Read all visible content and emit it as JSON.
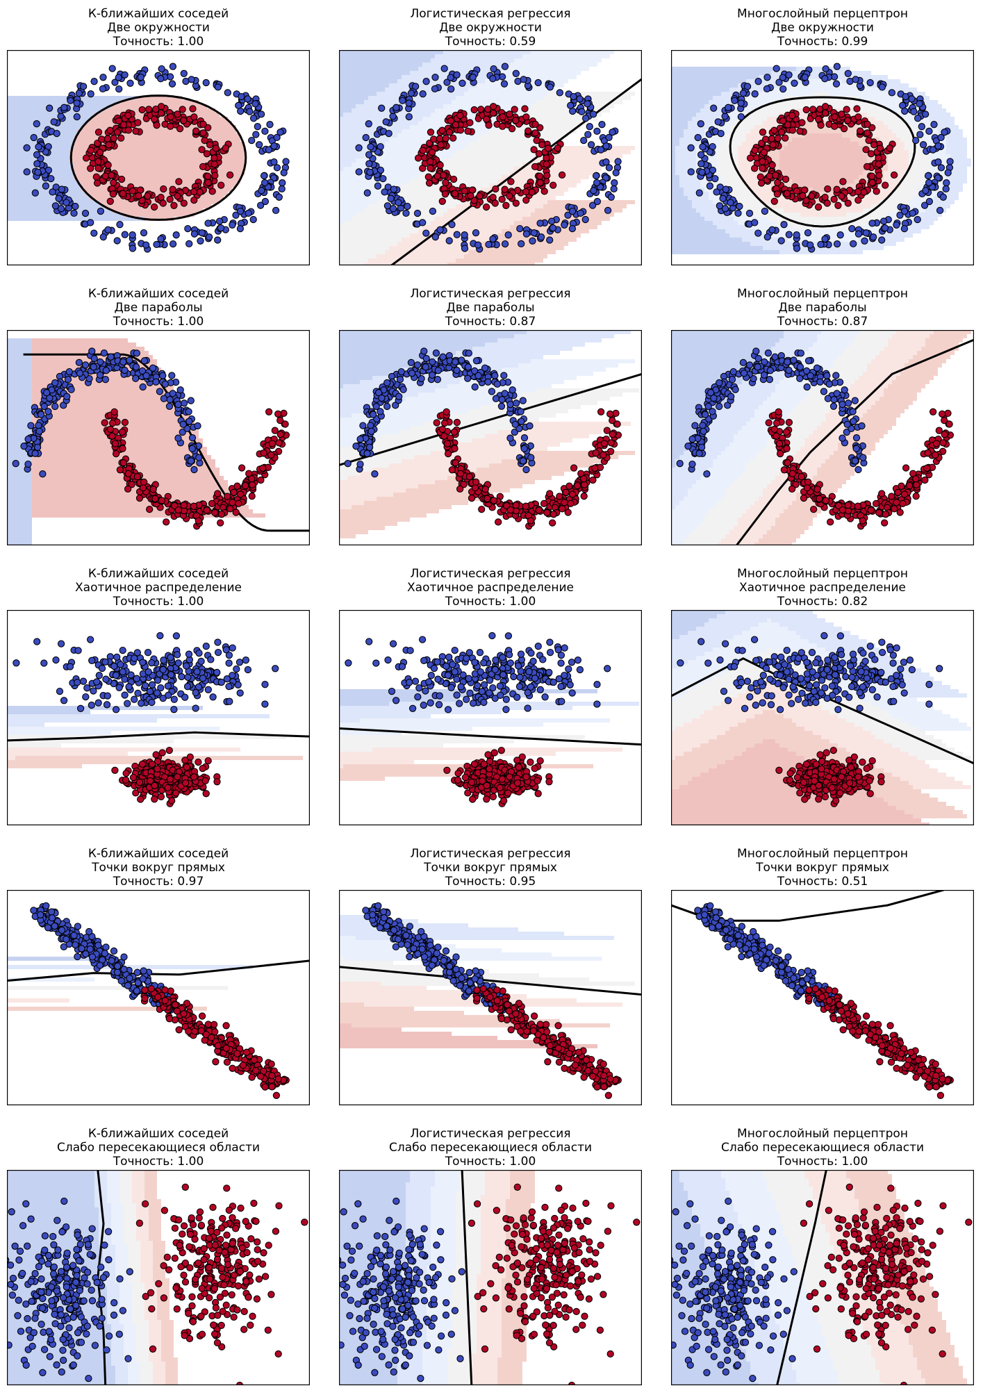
{
  "colors": {
    "blue_bg": "#c6d2f1",
    "blue_light": "#dde6fa",
    "blue_pale": "#eaf0fc",
    "neutral": "#f2f2f2",
    "red_pale": "#f9e6e3",
    "red_light": "#f4d2cc",
    "red_bg": "#efc2c0",
    "blue_point": "#3b4cc0",
    "red_point": "#b40426",
    "boundary": "#000000",
    "point_edge": "#000000"
  },
  "chart_data": [
    {
      "type": "scatter",
      "model": "К-ближайших соседей",
      "dataset": "Две окружности",
      "accuracy_label": "Точность: 1.00",
      "accuracy": 1.0,
      "xlim": [
        -1.3,
        1.3
      ],
      "ylim": [
        -1.3,
        1.3
      ],
      "xticks": [],
      "yticks": [],
      "series": [
        {
          "class": 0,
          "shape": "ring",
          "radius": 1.0,
          "noise": 0.06
        },
        {
          "class": 1,
          "shape": "ring",
          "radius": 0.5,
          "noise": 0.06
        }
      ]
    },
    {
      "type": "scatter",
      "model": "Логистическая регрессия",
      "dataset": "Две окружности",
      "accuracy_label": "Точность: 0.59",
      "accuracy": 0.59,
      "xlim": [
        -1.3,
        1.3
      ],
      "ylim": [
        -1.3,
        1.3
      ],
      "xticks": [],
      "yticks": [],
      "series": [
        {
          "class": 0,
          "shape": "ring",
          "radius": 1.0,
          "noise": 0.06
        },
        {
          "class": 1,
          "shape": "ring",
          "radius": 0.5,
          "noise": 0.06
        }
      ]
    },
    {
      "type": "scatter",
      "model": "Многослойный перцептрон",
      "dataset": "Две окружности",
      "accuracy_label": "Точность: 0.99",
      "accuracy": 0.99,
      "xlim": [
        -1.3,
        1.3
      ],
      "ylim": [
        -1.3,
        1.3
      ],
      "xticks": [],
      "yticks": [],
      "series": [
        {
          "class": 0,
          "shape": "ring",
          "radius": 1.0,
          "noise": 0.06
        },
        {
          "class": 1,
          "shape": "ring",
          "radius": 0.5,
          "noise": 0.06
        }
      ]
    },
    {
      "type": "scatter",
      "model": "К-ближайших соседей",
      "dataset": "Две параболы",
      "accuracy_label": "Точность: 1.00",
      "accuracy": 1.0,
      "xlim": [
        -1.3,
        2.4
      ],
      "ylim": [
        -0.85,
        1.35
      ],
      "xticks": [],
      "yticks": [],
      "series": [
        {
          "class": 0,
          "shape": "moon_upper",
          "noise": 0.06
        },
        {
          "class": 1,
          "shape": "moon_lower",
          "noise": 0.06
        }
      ]
    },
    {
      "type": "scatter",
      "model": "Логистическая регрессия",
      "dataset": "Две параболы",
      "accuracy_label": "Точность: 0.87",
      "accuracy": 0.87,
      "xlim": [
        -1.3,
        2.4
      ],
      "ylim": [
        -0.85,
        1.35
      ],
      "xticks": [],
      "yticks": [],
      "series": [
        {
          "class": 0,
          "shape": "moon_upper",
          "noise": 0.06
        },
        {
          "class": 1,
          "shape": "moon_lower",
          "noise": 0.06
        }
      ]
    },
    {
      "type": "scatter",
      "model": "Многослойный перцептрон",
      "dataset": "Две параболы",
      "accuracy_label": "Точность: 0.87",
      "accuracy": 0.87,
      "xlim": [
        -1.3,
        2.4
      ],
      "ylim": [
        -0.85,
        1.35
      ],
      "xticks": [],
      "yticks": [],
      "series": [
        {
          "class": 0,
          "shape": "moon_upper",
          "noise": 0.06
        },
        {
          "class": 1,
          "shape": "moon_lower",
          "noise": 0.06
        }
      ]
    },
    {
      "type": "scatter",
      "model": "К-ближайших соседей",
      "dataset": "Хаотичное распределение",
      "accuracy_label": "Точность: 1.00",
      "accuracy": 1.0,
      "xlim": [
        -4.2,
        4.2
      ],
      "ylim": [
        -4.6,
        3.4
      ],
      "xticks": [],
      "yticks": [],
      "series": [
        {
          "class": 0,
          "shape": "blob",
          "center": [
            0,
            1.0
          ],
          "spread": [
            1.3,
            0.6
          ]
        },
        {
          "class": 1,
          "shape": "blob",
          "center": [
            0.3,
            -2.9
          ],
          "spread": [
            0.55,
            0.35
          ]
        }
      ]
    },
    {
      "type": "scatter",
      "model": "Логистическая регрессия",
      "dataset": "Хаотичное распределение",
      "accuracy_label": "Точность: 1.00",
      "accuracy": 1.0,
      "xlim": [
        -4.2,
        4.2
      ],
      "ylim": [
        -4.6,
        3.4
      ],
      "xticks": [],
      "yticks": [],
      "series": [
        {
          "class": 0,
          "shape": "blob",
          "center": [
            0,
            1.0
          ],
          "spread": [
            1.3,
            0.6
          ]
        },
        {
          "class": 1,
          "shape": "blob",
          "center": [
            0.3,
            -2.9
          ],
          "spread": [
            0.55,
            0.35
          ]
        }
      ]
    },
    {
      "type": "scatter",
      "model": "Многослойный перцептрон",
      "dataset": "Хаотичное распределение",
      "accuracy_label": "Точность: 0.82",
      "accuracy": 0.82,
      "xlim": [
        -4.2,
        4.2
      ],
      "ylim": [
        -4.6,
        3.4
      ],
      "xticks": [],
      "yticks": [],
      "series": [
        {
          "class": 0,
          "shape": "blob",
          "center": [
            0,
            1.0
          ],
          "spread": [
            1.3,
            0.6
          ]
        },
        {
          "class": 1,
          "shape": "blob",
          "center": [
            0.3,
            -2.9
          ],
          "spread": [
            0.55,
            0.35
          ]
        }
      ]
    },
    {
      "type": "scatter",
      "model": "К-ближайших соседей",
      "dataset": "Точки вокруг прямых",
      "accuracy_label": "Точность: 0.97",
      "accuracy": 0.97,
      "xlim": [
        -3.5,
        3.5
      ],
      "ylim": [
        -3.5,
        3.5
      ],
      "xticks": [],
      "yticks": [],
      "series": [
        {
          "class": 0,
          "shape": "line_band",
          "t_range": [
            -3.0,
            0.2
          ]
        },
        {
          "class": 1,
          "shape": "line_band",
          "t_range": [
            -0.2,
            3.0
          ]
        }
      ]
    },
    {
      "type": "scatter",
      "model": "Логистическая регрессия",
      "dataset": "Точки вокруг прямых",
      "accuracy_label": "Точность: 0.95",
      "accuracy": 0.95,
      "xlim": [
        -3.5,
        3.5
      ],
      "ylim": [
        -3.5,
        3.5
      ],
      "xticks": [],
      "yticks": [],
      "series": [
        {
          "class": 0,
          "shape": "line_band",
          "t_range": [
            -3.0,
            0.2
          ]
        },
        {
          "class": 1,
          "shape": "line_band",
          "t_range": [
            -0.2,
            3.0
          ]
        }
      ]
    },
    {
      "type": "scatter",
      "model": "Многослойный перцептрон",
      "dataset": "Точки вокруг прямых",
      "accuracy_label": "Точность: 0.51",
      "accuracy": 0.51,
      "xlim": [
        -3.5,
        3.5
      ],
      "ylim": [
        -3.5,
        3.5
      ],
      "xticks": [],
      "yticks": [],
      "series": [
        {
          "class": 0,
          "shape": "line_band",
          "t_range": [
            -3.0,
            0.2
          ]
        },
        {
          "class": 1,
          "shape": "line_band",
          "t_range": [
            -0.2,
            3.0
          ]
        }
      ]
    },
    {
      "type": "scatter",
      "model": "К-ближайших соседей",
      "dataset": "Слабо пересекающиеся области",
      "accuracy_label": "Точность: 1.00",
      "accuracy": 1.0,
      "xlim": [
        -4.0,
        4.0
      ],
      "ylim": [
        -3.0,
        3.0
      ],
      "xticks": [],
      "yticks": [],
      "series": [
        {
          "class": 0,
          "shape": "blob",
          "center": [
            -2.5,
            -0.5
          ],
          "spread": [
            0.65,
            1.0
          ]
        },
        {
          "class": 1,
          "shape": "blob",
          "center": [
            1.5,
            0.3
          ],
          "spread": [
            0.75,
            1.0
          ]
        }
      ]
    },
    {
      "type": "scatter",
      "model": "Логистическая регрессия",
      "dataset": "Слабо пересекающиеся области",
      "accuracy_label": "Точность: 1.00",
      "accuracy": 1.0,
      "xlim": [
        -4.0,
        4.0
      ],
      "ylim": [
        -3.0,
        3.0
      ],
      "xticks": [],
      "yticks": [],
      "series": [
        {
          "class": 0,
          "shape": "blob",
          "center": [
            -2.5,
            -0.5
          ],
          "spread": [
            0.65,
            1.0
          ]
        },
        {
          "class": 1,
          "shape": "blob",
          "center": [
            1.5,
            0.3
          ],
          "spread": [
            0.75,
            1.0
          ]
        }
      ]
    },
    {
      "type": "scatter",
      "model": "Многослойный перцептрон",
      "dataset": "Слабо пересекающиеся области",
      "accuracy_label": "Точность: 1.00",
      "accuracy": 1.0,
      "xlim": [
        -4.0,
        4.0
      ],
      "ylim": [
        -3.0,
        3.0
      ],
      "xticks": [],
      "yticks": [],
      "series": [
        {
          "class": 0,
          "shape": "blob",
          "center": [
            -2.5,
            -0.5
          ],
          "spread": [
            0.65,
            1.0
          ]
        },
        {
          "class": 1,
          "shape": "blob",
          "center": [
            1.5,
            0.3
          ],
          "spread": [
            0.75,
            1.0
          ]
        }
      ]
    }
  ]
}
